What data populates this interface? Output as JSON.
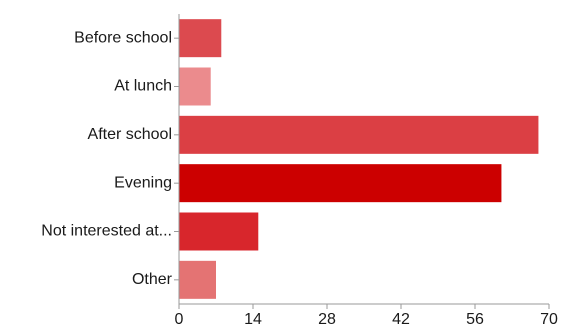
{
  "chart_data": {
    "type": "bar",
    "orientation": "horizontal",
    "categories": [
      "Before school",
      "At lunch",
      "After school",
      "Evening",
      "Not interested at...",
      "Other"
    ],
    "values": [
      8,
      6,
      68,
      61,
      15,
      7
    ],
    "colors": [
      "#dc4a4f",
      "#eb8b8d",
      "#db3f44",
      "#cc0000",
      "#d8262c",
      "#e47373"
    ],
    "xlim": [
      0,
      70
    ],
    "xticks": [
      0,
      14,
      28,
      42,
      56,
      70
    ],
    "title": "",
    "xlabel": "",
    "ylabel": "",
    "grid": false,
    "legend": "none"
  }
}
